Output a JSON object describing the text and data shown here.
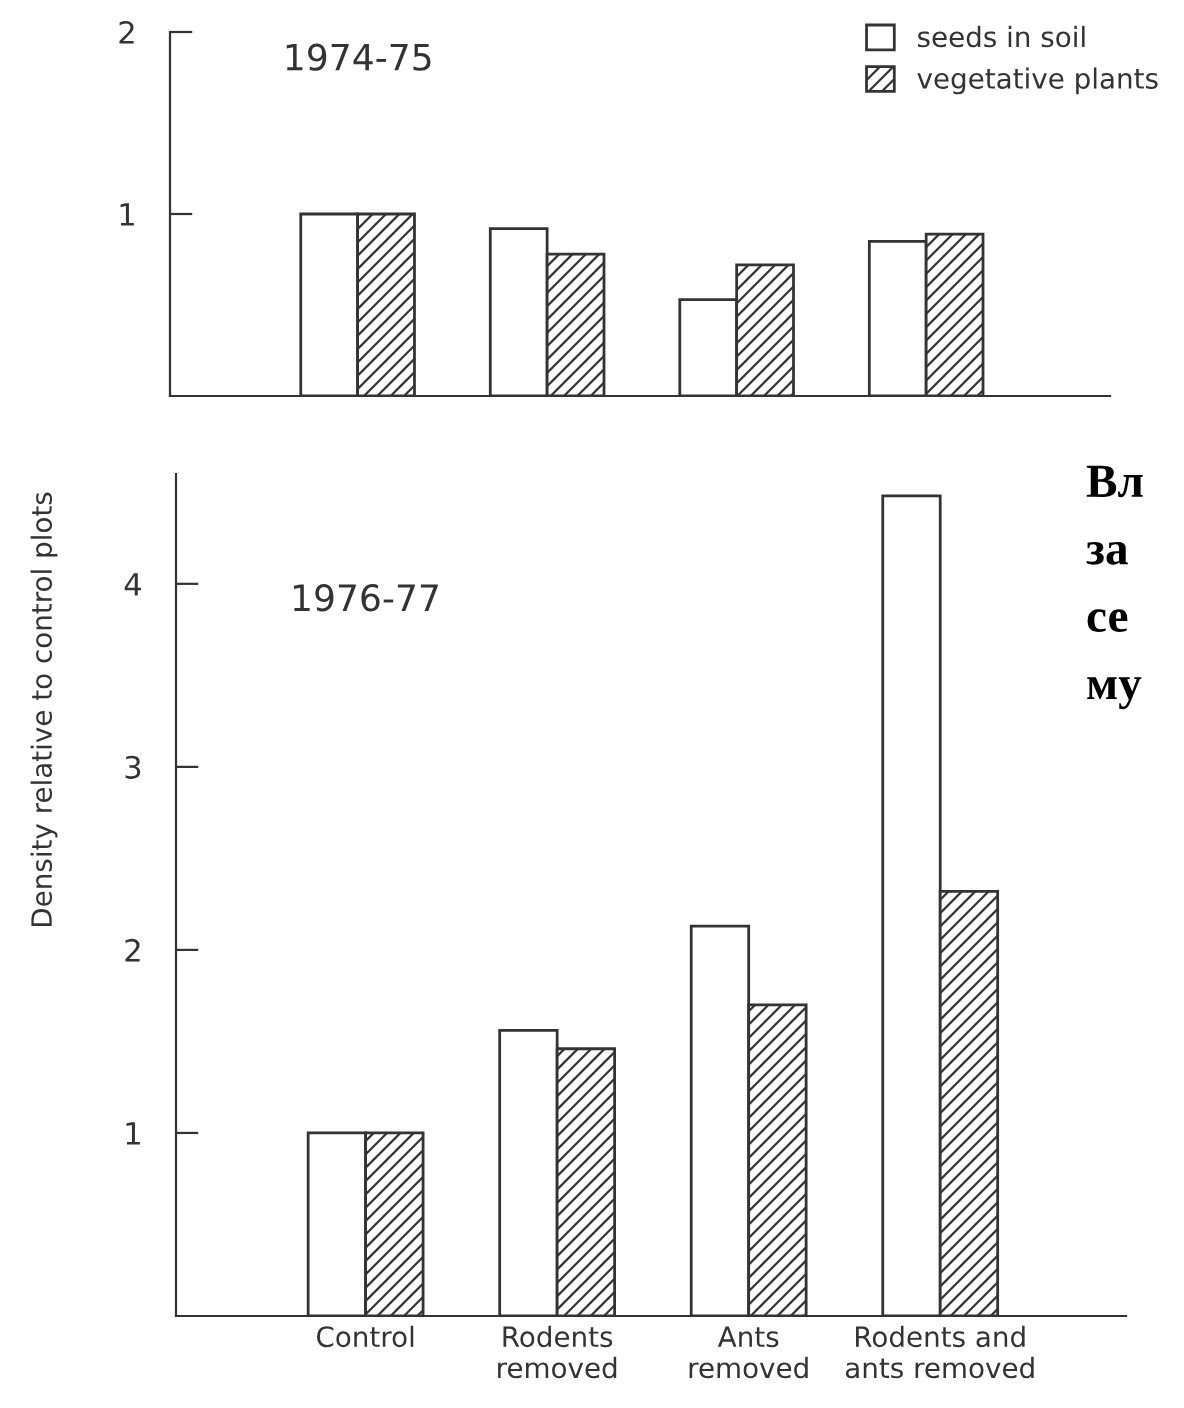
{
  "chart_data": [
    {
      "type": "bar",
      "categories": [
        null,
        null,
        null,
        null
      ],
      "series": [
        {
          "name": "seeds in soil",
          "color": "#ffffff",
          "values": [
            1.0,
            0.92,
            0.53,
            0.85
          ]
        },
        {
          "name": "vegetative plants",
          "color": "#333333",
          "values": [
            1.0,
            0.78,
            0.72,
            0.89
          ]
        }
      ],
      "ylim": [
        0,
        2
      ],
      "yticks": [
        2,
        1
      ],
      "ylabel": "Density relative to control plots",
      "annotations": [
        "1974-75"
      ],
      "legend": "top right",
      "tick_labels": "y"
    },
    {
      "type": "bar",
      "categories": [
        "Control",
        "Rodents\nremoved",
        "Ants\nremoved",
        "Rodents and\nants removed"
      ],
      "series": [
        {
          "color": "#ffffff",
          "values": [
            1.0,
            1.56,
            2.13,
            4.48
          ]
        },
        {
          "color": "#333333",
          "values": [
            1.0,
            1.46,
            1.7,
            2.32
          ]
        }
      ],
      "ylim": [
        0,
        4.6
      ],
      "yticks": [
        1,
        2,
        3,
        4
      ],
      "annotations": [
        "1976-77",
        "Вл\nза\nсе\nму"
      ]
    }
  ]
}
